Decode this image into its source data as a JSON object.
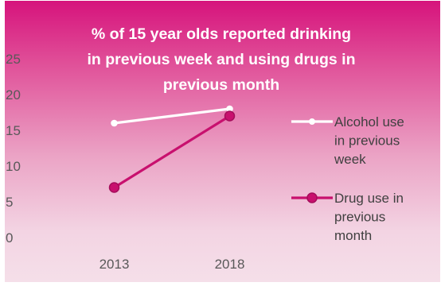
{
  "chart_data": {
    "type": "line",
    "title_lines": [
      "% of 15  year olds reported drinking",
      "in previous week and using drugs in",
      "previous month"
    ],
    "categories": [
      "2013",
      "2018"
    ],
    "ylim": [
      0,
      25
    ],
    "yticks": [
      "0",
      "5",
      "10",
      "15",
      "20",
      "25"
    ],
    "series": [
      {
        "name_lines": [
          "Alcohol use",
          "in previous",
          "week"
        ],
        "values": [
          16,
          18
        ],
        "color": "#ffffff",
        "marker_fill": "#ffffff"
      },
      {
        "name_lines": [
          "Drug use in",
          "previous",
          "month"
        ],
        "values": [
          7,
          17
        ],
        "color": "#c8106e",
        "marker_fill": "#c8106e"
      }
    ],
    "grid": false,
    "legend": "right"
  },
  "colors": {
    "background_top": "#d6137c",
    "background_bottom": "#f5dfe9",
    "title": "#ffffff",
    "axis_text": "#595959"
  }
}
